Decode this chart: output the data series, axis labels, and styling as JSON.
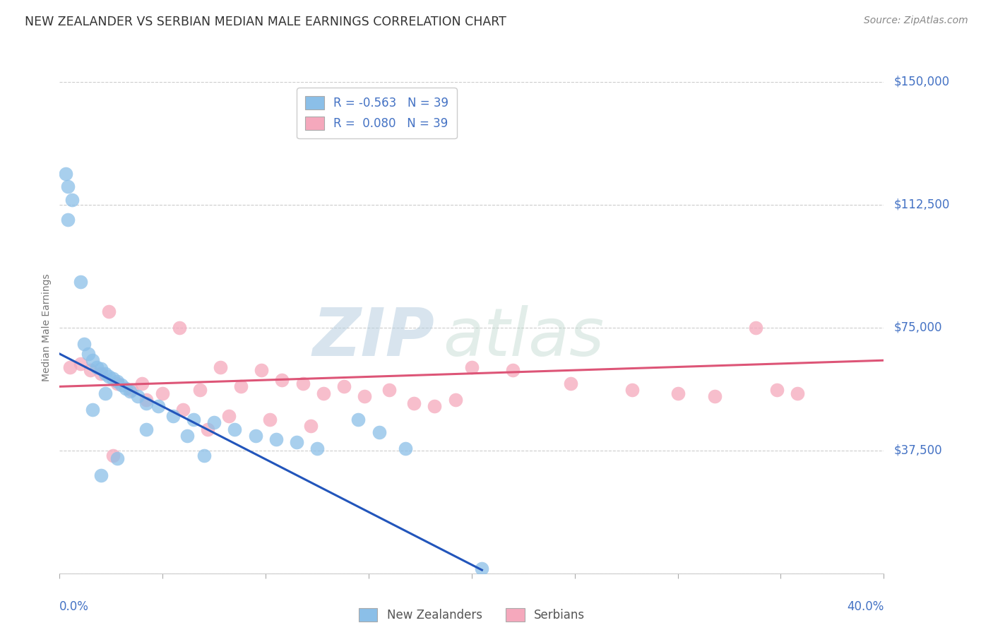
{
  "title": "NEW ZEALANDER VS SERBIAN MEDIAN MALE EARNINGS CORRELATION CHART",
  "source": "Source: ZipAtlas.com",
  "ylabel": "Median Male Earnings",
  "y_ticks": [
    0,
    37500,
    75000,
    112500,
    150000
  ],
  "y_tick_labels": [
    "",
    "$37,500",
    "$75,000",
    "$112,500",
    "$150,000"
  ],
  "x_min": 0.0,
  "x_max": 0.4,
  "y_min": 0,
  "y_max": 150000,
  "r_nz": -0.563,
  "n_nz": 39,
  "r_sr": 0.08,
  "n_sr": 39,
  "nz_color": "#8bbfe8",
  "sr_color": "#f5a8bc",
  "nz_line_color": "#2255bb",
  "sr_line_color": "#dd5577",
  "bg_color": "#ffffff",
  "legend_label_nz": "New Zealanders",
  "legend_label_sr": "Serbians",
  "nz_line_x0": 0.0,
  "nz_line_y0": 67000,
  "nz_line_x1": 0.205,
  "nz_line_y1": 1000,
  "sr_line_x0": 0.0,
  "sr_line_y0": 57000,
  "sr_line_x1": 0.4,
  "sr_line_y1": 65000,
  "nz_x": [
    0.003,
    0.004,
    0.006,
    0.004,
    0.01,
    0.012,
    0.014,
    0.016,
    0.018,
    0.02,
    0.022,
    0.024,
    0.026,
    0.028,
    0.03,
    0.032,
    0.034,
    0.038,
    0.042,
    0.048,
    0.055,
    0.065,
    0.075,
    0.085,
    0.095,
    0.105,
    0.115,
    0.125,
    0.145,
    0.155,
    0.168,
    0.042,
    0.062,
    0.022,
    0.028,
    0.205,
    0.016,
    0.02,
    0.07
  ],
  "nz_y": [
    122000,
    118000,
    114000,
    108000,
    89000,
    70000,
    67000,
    65000,
    63000,
    62500,
    61000,
    60000,
    59500,
    58500,
    57500,
    56500,
    55500,
    54000,
    52000,
    51000,
    48000,
    47000,
    46000,
    44000,
    42000,
    41000,
    40000,
    38000,
    47000,
    43000,
    38000,
    44000,
    42000,
    55000,
    35000,
    1500,
    50000,
    30000,
    36000
  ],
  "sr_x": [
    0.005,
    0.01,
    0.015,
    0.02,
    0.024,
    0.028,
    0.035,
    0.04,
    0.05,
    0.058,
    0.068,
    0.078,
    0.088,
    0.098,
    0.108,
    0.118,
    0.128,
    0.138,
    0.148,
    0.16,
    0.172,
    0.182,
    0.192,
    0.2,
    0.22,
    0.248,
    0.278,
    0.3,
    0.318,
    0.348,
    0.358,
    0.042,
    0.06,
    0.082,
    0.102,
    0.122,
    0.026,
    0.072,
    0.338
  ],
  "sr_y": [
    63000,
    64000,
    62000,
    61000,
    80000,
    58000,
    56000,
    58000,
    55000,
    75000,
    56000,
    63000,
    57000,
    62000,
    59000,
    58000,
    55000,
    57000,
    54000,
    56000,
    52000,
    51000,
    53000,
    63000,
    62000,
    58000,
    56000,
    55000,
    54000,
    56000,
    55000,
    53000,
    50000,
    48000,
    47000,
    45000,
    36000,
    44000,
    75000
  ]
}
